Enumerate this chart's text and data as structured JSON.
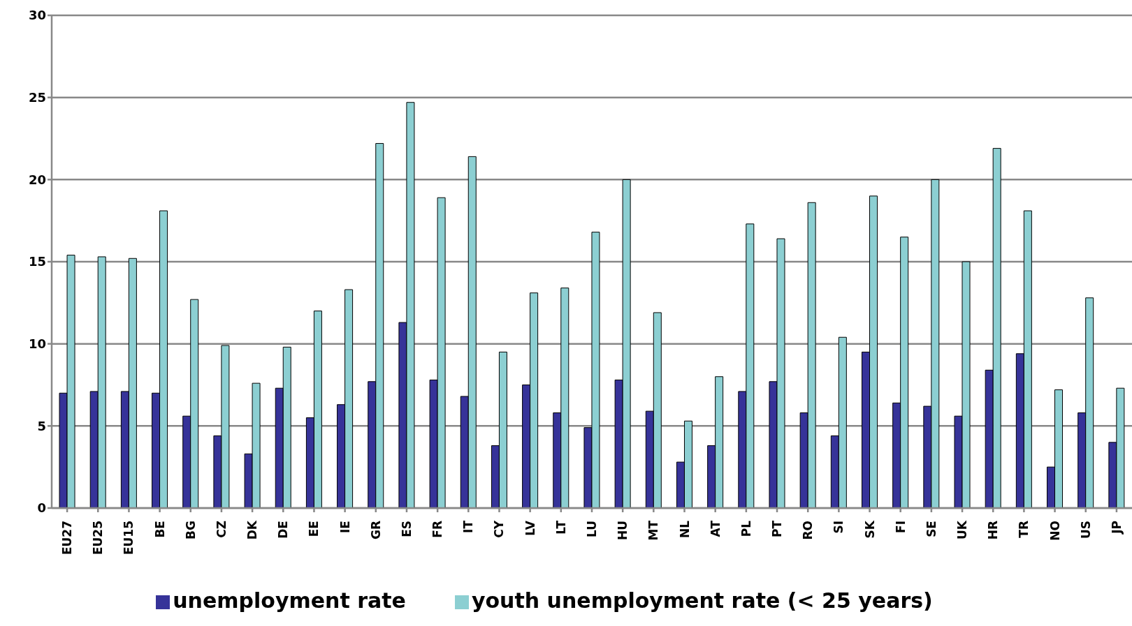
{
  "chart_data": {
    "type": "bar",
    "categories": [
      "EU27",
      "EU25",
      "EU15",
      "BE",
      "BG",
      "CZ",
      "DK",
      "DE",
      "EE",
      "IE",
      "GR",
      "ES",
      "FR",
      "IT",
      "CY",
      "LV",
      "LT",
      "LU",
      "HU",
      "MT",
      "NL",
      "AT",
      "PL",
      "PT",
      "RO",
      "SI",
      "SK",
      "FI",
      "SE",
      "UK",
      "HR",
      "TR",
      "NO",
      "US",
      "JP"
    ],
    "series": [
      {
        "name": "unemployment rate",
        "color": "#363399",
        "values": [
          7.0,
          7.1,
          7.1,
          7.0,
          5.6,
          4.4,
          3.3,
          7.3,
          5.5,
          6.3,
          7.7,
          11.3,
          7.8,
          6.8,
          3.8,
          7.5,
          5.8,
          4.9,
          7.8,
          5.9,
          2.8,
          3.8,
          7.1,
          7.7,
          5.8,
          4.4,
          9.5,
          6.4,
          6.2,
          5.6,
          8.4,
          9.4,
          2.5,
          5.8,
          4.0
        ]
      },
      {
        "name": "youth unemployment rate (< 25 years)",
        "color": "#8ccfd2",
        "values": [
          15.4,
          15.3,
          15.2,
          18.1,
          12.7,
          9.9,
          7.6,
          9.8,
          12.0,
          13.3,
          22.2,
          24.7,
          18.9,
          21.4,
          9.5,
          13.1,
          13.4,
          16.8,
          20.0,
          11.9,
          5.3,
          8.0,
          17.3,
          16.4,
          18.6,
          10.4,
          19.0,
          16.5,
          20.0,
          15.0,
          21.9,
          18.1,
          7.2,
          12.8,
          7.3
        ]
      }
    ],
    "ylim": [
      0,
      30
    ],
    "yticks": [
      0,
      5,
      10,
      15,
      20,
      25,
      30
    ],
    "grid": "y",
    "legend": "bottom"
  }
}
